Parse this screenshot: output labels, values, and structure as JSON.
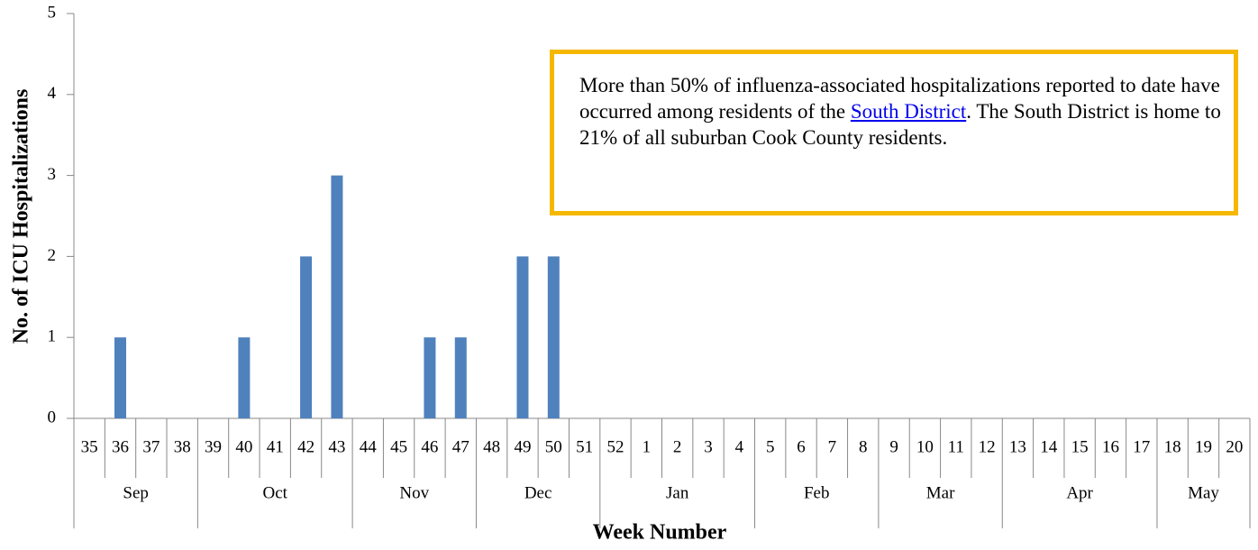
{
  "chart_data": {
    "type": "bar",
    "y_label": "No. of ICU Hospitalizations",
    "x_label": "Week Number",
    "months": [
      {
        "name": "Sep",
        "weeks": [
          "35",
          "36",
          "37",
          "38"
        ]
      },
      {
        "name": "Oct",
        "weeks": [
          "39",
          "40",
          "41",
          "42",
          "43"
        ]
      },
      {
        "name": "Nov",
        "weeks": [
          "44",
          "45",
          "46",
          "47"
        ]
      },
      {
        "name": "Dec",
        "weeks": [
          "48",
          "49",
          "50",
          "51"
        ]
      },
      {
        "name": "Jan",
        "weeks": [
          "52",
          "1",
          "2",
          "3",
          "4"
        ]
      },
      {
        "name": "Feb",
        "weeks": [
          "5",
          "6",
          "7",
          "8"
        ]
      },
      {
        "name": "Mar",
        "weeks": [
          "9",
          "10",
          "11",
          "12"
        ]
      },
      {
        "name": "Apr",
        "weeks": [
          "13",
          "14",
          "15",
          "16",
          "17"
        ]
      },
      {
        "name": "May",
        "weeks": [
          "18",
          "19",
          "20"
        ]
      }
    ],
    "values": [
      0,
      1,
      0,
      0,
      0,
      1,
      0,
      2,
      3,
      0,
      0,
      1,
      1,
      0,
      2,
      2,
      0,
      0,
      0,
      0,
      0,
      0,
      0,
      0,
      0,
      0,
      0,
      0,
      0,
      0,
      0,
      0,
      0,
      0,
      0,
      0,
      0,
      0
    ],
    "color": "#4f81bd",
    "ylim": [
      0,
      5
    ],
    "yticks": [
      0,
      1,
      2,
      3,
      4,
      5
    ],
    "annotation": {
      "before": "More than 50% of influenza-associated hospitalizations reported to date have occurred among residents of the ",
      "link": "South District",
      "after": ". The South District is home to 21% of all suburban Cook County residents."
    }
  }
}
